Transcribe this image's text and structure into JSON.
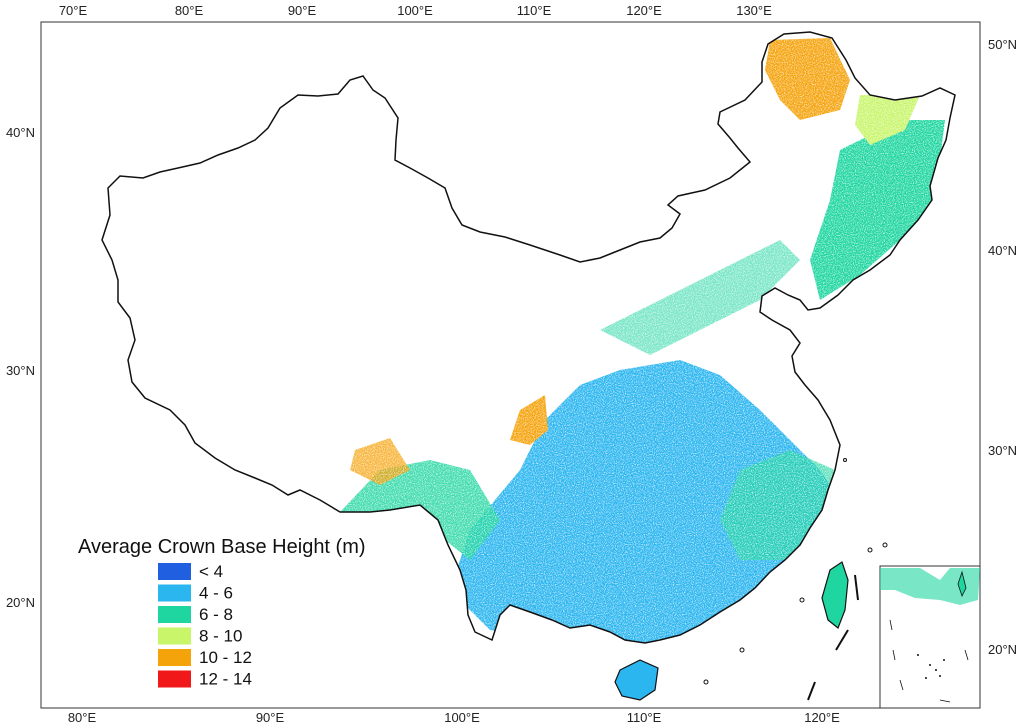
{
  "map": {
    "top_axis_labels": [
      "70°E",
      "80°E",
      "90°E",
      "100°E",
      "110°E",
      "120°E",
      "130°E"
    ],
    "bottom_axis_labels": [
      "80°E",
      "90°E",
      "100°E",
      "110°E",
      "120°E"
    ],
    "left_axis_labels": [
      "40°N",
      "30°N",
      "20°N"
    ],
    "right_axis_labels": [
      "50°N",
      "40°N",
      "30°N",
      "20°N"
    ]
  },
  "legend": {
    "title": "Average Crown Base Height (m)",
    "classes": [
      {
        "label": "< 4",
        "color": "#1f5fe0"
      },
      {
        "label": "4 - 6",
        "color": "#2cb6f0"
      },
      {
        "label": "6 - 8",
        "color": "#1fd6a0"
      },
      {
        "label": "8 - 10",
        "color": "#c8f56a"
      },
      {
        "label": "10 - 12",
        "color": "#f5a30a"
      },
      {
        "label": "12 - 14",
        "color": "#f01818"
      }
    ]
  },
  "colors": {
    "boundary": "#111111",
    "frame": "#333333",
    "background": "#ffffff"
  }
}
